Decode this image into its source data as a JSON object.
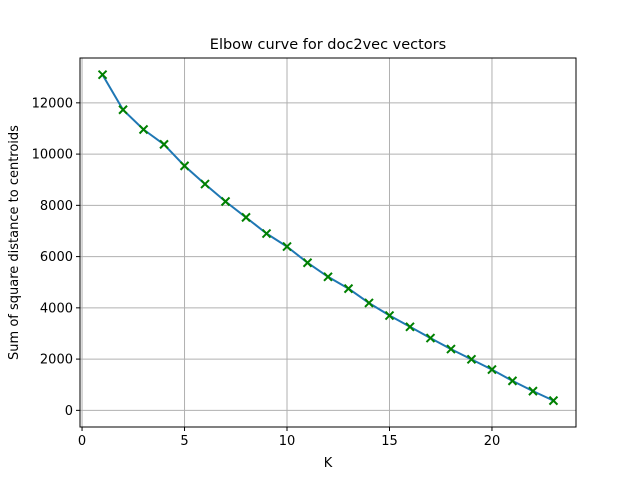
{
  "chart_data": {
    "type": "line",
    "title": "Elbow curve for doc2vec vectors",
    "xlabel": "K",
    "ylabel": "Sum of square distance to centroids",
    "xlim": [
      -0.1,
      24.1
    ],
    "ylim": [
      -650,
      13750
    ],
    "xticks": [
      0,
      5,
      10,
      15,
      20
    ],
    "yticks": [
      0,
      2000,
      4000,
      6000,
      8000,
      10000,
      12000
    ],
    "grid": true,
    "line_color": "#1f77b4",
    "marker_color": "#008000",
    "marker": "x",
    "series": [
      {
        "x": [
          1,
          2,
          3,
          4,
          5,
          6,
          7,
          8,
          9,
          10,
          11,
          12,
          13,
          14,
          15,
          16,
          17,
          18,
          19,
          20,
          21,
          22,
          23
        ],
        "y": [
          13100,
          11730,
          10960,
          10380,
          9540,
          8830,
          8150,
          7530,
          6900,
          6390,
          5760,
          5210,
          4750,
          4190,
          3700,
          3260,
          2820,
          2390,
          1990,
          1590,
          1150,
          750,
          380
        ]
      }
    ]
  }
}
